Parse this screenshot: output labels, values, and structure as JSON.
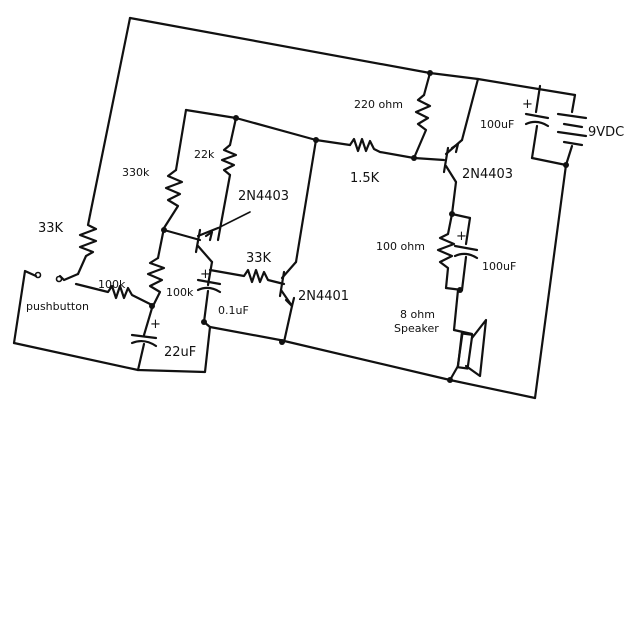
{
  "labels": {
    "r_33k_top": "33K",
    "pushbutton": "pushbutton",
    "r_100k_a": "100k",
    "r_100k_b": "100k",
    "c_22uf": "22uF",
    "c_22uf_plus": "+",
    "r_330k": "330k",
    "r_22k": "22k",
    "q1": "2N4403",
    "c_01uf": "0.1uF",
    "c_01uf_plus": "+",
    "r_33k_mid": "33K",
    "q2": "2N4401",
    "r_220": "220 ohm",
    "r_15k": "1.5K",
    "q3": "2N4403",
    "c_100uf_top": "100uF",
    "c_100uf_top_plus": "+",
    "battery": "9VDC",
    "r_100ohm": "100 ohm",
    "c_100uf_mid": "100uF",
    "c_100uf_mid_plus": "+",
    "speaker_1": "8 ohm",
    "speaker_2": "Speaker"
  }
}
